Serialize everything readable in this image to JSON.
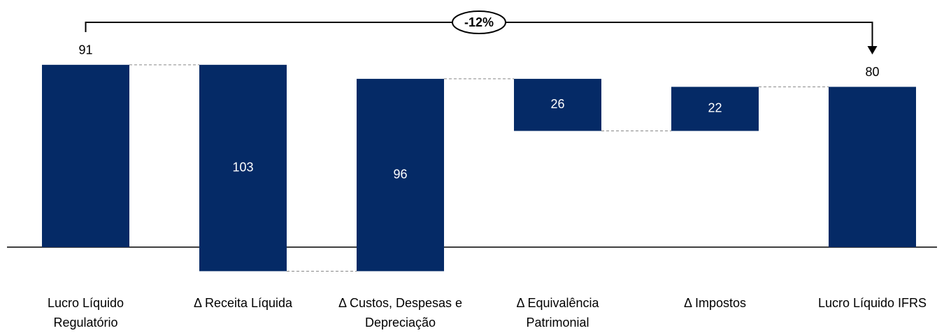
{
  "chart_data": {
    "type": "waterfall",
    "categories": [
      "Lucro Líquido Regulatório",
      "Δ Receita Líquida",
      "Δ Custos, Despesas e Depreciação",
      "Δ Equivalência Patrimonial",
      "Δ Impostos",
      "Lucro Líquido IFRS"
    ],
    "values": [
      91,
      -103,
      96,
      -26,
      22,
      80
    ],
    "value_labels": [
      "91",
      "103",
      "96",
      "26",
      "22",
      "80"
    ],
    "totals": [
      true,
      false,
      false,
      false,
      false,
      true
    ],
    "color": "#052a66",
    "annotation": "-12%"
  }
}
